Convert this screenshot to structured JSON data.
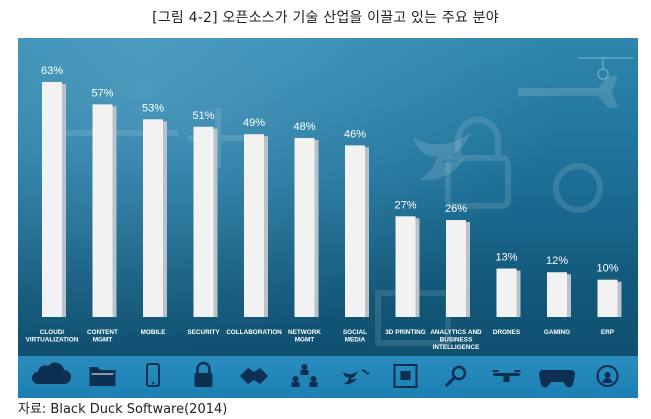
{
  "figure_title": "[그림 4-2] 오픈소스가 기술 산업을 이끌고 있는 주요 분야",
  "source_note": "자료: Black Duck Software(2014)",
  "colors": {
    "bar": "#f2f2f2",
    "bar_side": "#b9c3c9",
    "panel_top": "#2f86ac",
    "panel_bottom": "#0f4c6b"
  },
  "chart_data": {
    "type": "bar",
    "title": "",
    "xlabel": "",
    "ylabel": "",
    "ylim": [
      0,
      70
    ],
    "grid": false,
    "categories": [
      [
        "CLOUD/",
        "VIRTUALIZATION"
      ],
      [
        "CONTENT",
        "MGMT"
      ],
      [
        "MOBILE"
      ],
      [
        "SECURITY"
      ],
      [
        "COLLABORATION"
      ],
      [
        "NETWORK",
        "MGMT"
      ],
      [
        "SOCIAL",
        "MEDIA"
      ],
      [
        "3D PRINTING"
      ],
      [
        "ANALYTICS AND",
        "BUSINESS",
        "INTELLIGENCE"
      ],
      [
        "DRONES"
      ],
      [
        "GAMING"
      ],
      [
        "ERP"
      ]
    ],
    "values": [
      63,
      57,
      53,
      51,
      49,
      48,
      46,
      27,
      26,
      13,
      12,
      10
    ],
    "value_labels": [
      "63%",
      "57%",
      "53%",
      "51%",
      "49%",
      "48%",
      "46%",
      "27%",
      "26%",
      "13%",
      "12%",
      "10%"
    ],
    "category_icons": [
      "cloud-icon",
      "folder-icon",
      "mobile-phone-icon",
      "padlock-icon",
      "handshake-icon",
      "people-network-icon",
      "twitter-bird-icon",
      "3d-printer-icon",
      "magnifier-icon",
      "drone-icon",
      "gamepad-icon",
      "erp-cycle-icon"
    ]
  }
}
